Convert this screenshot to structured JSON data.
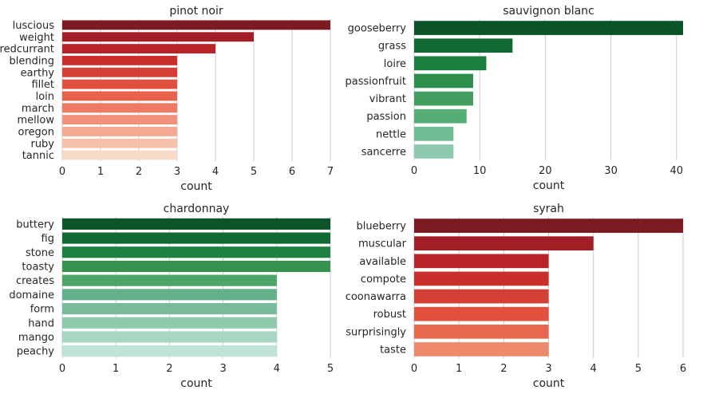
{
  "chart_data": [
    {
      "type": "bar",
      "orientation": "horizontal",
      "title": "pinot noir",
      "xlabel": "count",
      "ylabel": "",
      "categories": [
        "luscious",
        "weight",
        "redcurrant",
        "blending",
        "earthy",
        "fillet",
        "loin",
        "march",
        "mellow",
        "oregon",
        "ruby",
        "tannic"
      ],
      "values": [
        7,
        5,
        4,
        3,
        3,
        3,
        3,
        3,
        3,
        3,
        3,
        3
      ],
      "xlim": [
        0,
        7
      ],
      "xticks": [
        0,
        1,
        2,
        3,
        4,
        5,
        6,
        7
      ],
      "grid": "vertical",
      "colors": [
        "#7c1a22",
        "#a31f26",
        "#b82329",
        "#c9302c",
        "#d63f36",
        "#e0503d",
        "#e8614b",
        "#ee7962",
        "#f2917c",
        "#f4a993",
        "#f6c2ad",
        "#f8dac9"
      ]
    },
    {
      "type": "bar",
      "orientation": "horizontal",
      "title": "sauvignon blanc",
      "xlabel": "count",
      "ylabel": "",
      "categories": [
        "gooseberry",
        "grass",
        "loire",
        "passionfruit",
        "vibrant",
        "passion",
        "nettle",
        "sancerre"
      ],
      "values": [
        41,
        15,
        11,
        9,
        9,
        8,
        6,
        6
      ],
      "xlim": [
        0,
        41
      ],
      "xticks": [
        0,
        10,
        20,
        30,
        40
      ],
      "grid": "vertical",
      "colors": [
        "#0b5329",
        "#116a34",
        "#1d7f3f",
        "#2f8f4d",
        "#419e5e",
        "#56ad76",
        "#70bd94",
        "#8dcab0"
      ]
    },
    {
      "type": "bar",
      "orientation": "horizontal",
      "title": "chardonnay",
      "xlabel": "count",
      "ylabel": "",
      "categories": [
        "buttery",
        "fig",
        "stone",
        "toasty",
        "creates",
        "domaine",
        "form",
        "hand",
        "mango",
        "peachy"
      ],
      "values": [
        5,
        5,
        5,
        5,
        4,
        4,
        4,
        4,
        4,
        4
      ],
      "xlim": [
        0,
        5
      ],
      "xticks": [
        0,
        1,
        2,
        3,
        4,
        5
      ],
      "grid": "vertical",
      "colors": [
        "#0b5329",
        "#116a34",
        "#1f8141",
        "#35934f",
        "#4da56a",
        "#63b08a",
        "#77bb9a",
        "#8fc9ae",
        "#a7d6c3",
        "#c0e3d8"
      ]
    },
    {
      "type": "bar",
      "orientation": "horizontal",
      "title": "syrah",
      "xlabel": "count",
      "ylabel": "",
      "categories": [
        "blueberry",
        "muscular",
        "available",
        "compote",
        "coonawarra",
        "robust",
        "surprisingly",
        "taste"
      ],
      "values": [
        6,
        4,
        3,
        3,
        3,
        3,
        3,
        3
      ],
      "xlim": [
        0,
        6
      ],
      "xticks": [
        0,
        1,
        2,
        3,
        4,
        5,
        6
      ],
      "grid": "vertical",
      "colors": [
        "#7c1a22",
        "#a31f26",
        "#b82329",
        "#c9302c",
        "#d63f36",
        "#e0503d",
        "#e8674f",
        "#ed8a6c"
      ]
    }
  ]
}
